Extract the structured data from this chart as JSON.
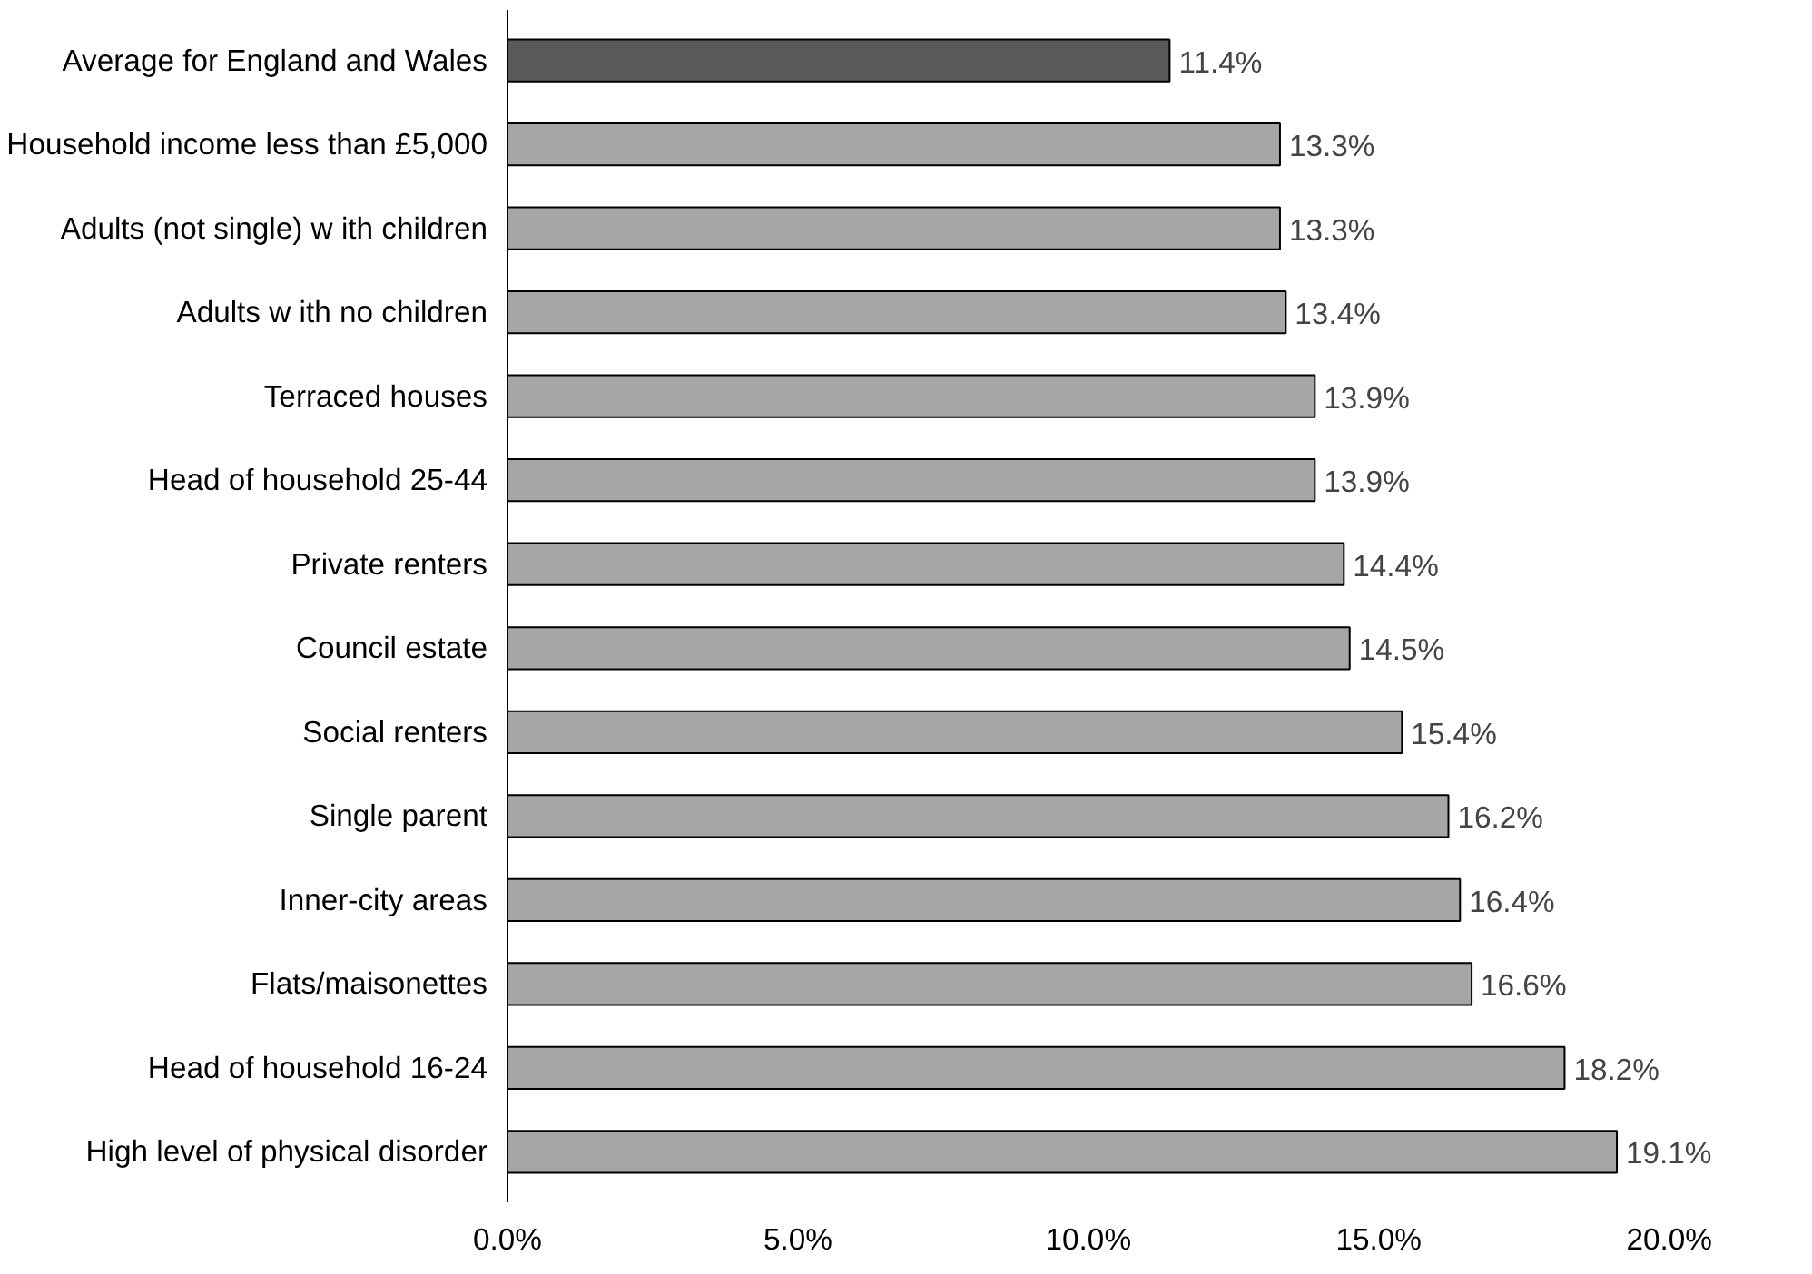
{
  "chart_data": {
    "type": "bar",
    "orientation": "horizontal",
    "categories": [
      "Average for England and Wales",
      "Household income less than £5,000",
      "Adults (not single) w ith children",
      "Adults w ith no children",
      "Terraced houses",
      "Head of household 25-44",
      "Private renters",
      "Council estate",
      "Social renters",
      "Single parent",
      "Inner-city areas",
      "Flats/maisonettes",
      "Head of household 16-24",
      "High level of physical disorder"
    ],
    "values": [
      11.4,
      13.3,
      13.3,
      13.4,
      13.9,
      13.9,
      14.4,
      14.5,
      15.4,
      16.2,
      16.4,
      16.6,
      18.2,
      19.1
    ],
    "colors": [
      "#595959",
      "#a6a6a6",
      "#a6a6a6",
      "#a6a6a6",
      "#a6a6a6",
      "#a6a6a6",
      "#a6a6a6",
      "#a6a6a6",
      "#a6a6a6",
      "#a6a6a6",
      "#a6a6a6",
      "#a6a6a6",
      "#a6a6a6",
      "#a6a6a6"
    ],
    "value_labels": [
      "11.4%",
      "13.3%",
      "13.3%",
      "13.4%",
      "13.9%",
      "13.9%",
      "14.4%",
      "14.5%",
      "15.4%",
      "16.2%",
      "16.4%",
      "16.6%",
      "18.2%",
      "19.1%"
    ],
    "xlim": [
      0,
      20
    ],
    "xticks": [
      {
        "value": 0,
        "label": "0.0%"
      },
      {
        "value": 5,
        "label": "5.0%"
      },
      {
        "value": 10,
        "label": "10.0%"
      },
      {
        "value": 15,
        "label": "15.0%"
      },
      {
        "value": 20,
        "label": "20.0%"
      }
    ],
    "grid": false
  }
}
